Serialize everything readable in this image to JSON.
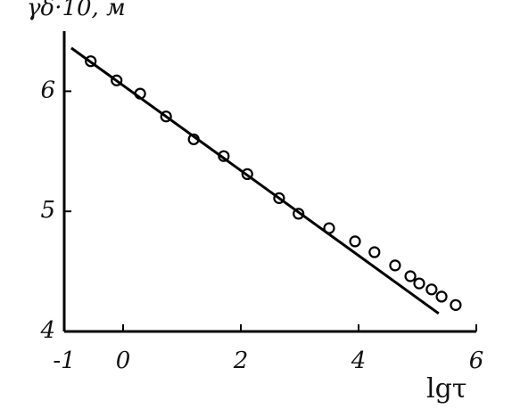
{
  "chart_data": {
    "type": "scatter",
    "y_label": "γδ·10, м",
    "x_label": "lgτ",
    "series": [
      {
        "name": "points",
        "color": "#000000",
        "kind": "markers",
        "x": [
          -0.55,
          -0.11,
          0.29,
          0.73,
          1.2,
          1.71,
          2.11,
          2.65,
          2.98,
          3.5,
          3.94,
          4.27,
          4.62,
          4.88,
          5.03,
          5.24,
          5.41,
          5.65
        ],
        "values": [
          6.25,
          6.09,
          5.98,
          5.79,
          5.6,
          5.46,
          5.31,
          5.11,
          4.98,
          4.86,
          4.75,
          4.66,
          4.55,
          4.46,
          4.4,
          4.35,
          4.29,
          4.22
        ]
      },
      {
        "name": "fit",
        "color": "#000000",
        "kind": "line",
        "x": [
          -0.88,
          5.36
        ],
        "values": [
          6.36,
          4.15
        ]
      }
    ],
    "xlim": [
      -1,
      6
    ],
    "xticks": [
      -1,
      0,
      2,
      4,
      6
    ],
    "ylim": [
      4,
      6.5
    ],
    "yticks": [
      4,
      5,
      6
    ]
  }
}
